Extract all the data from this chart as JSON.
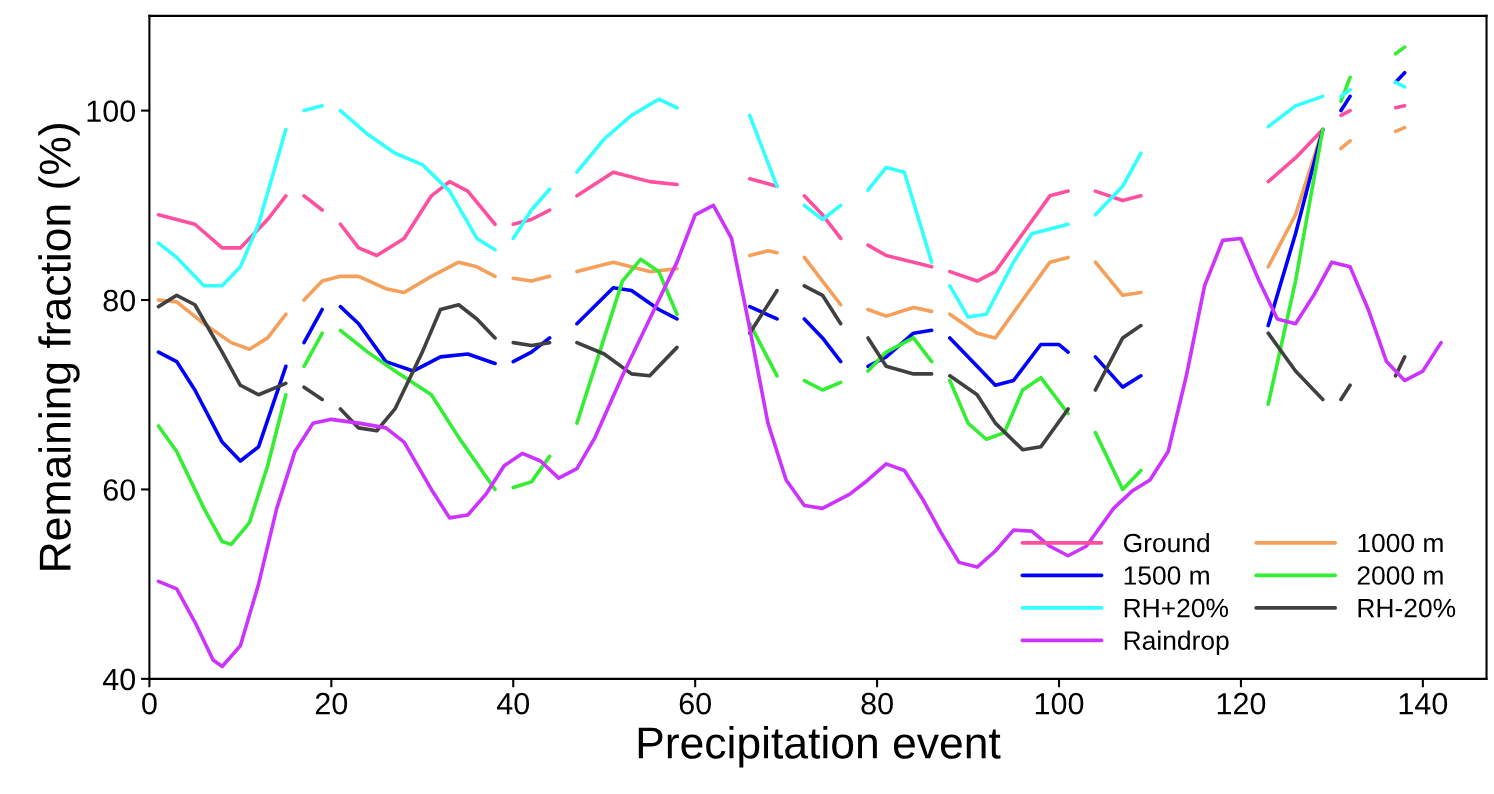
{
  "chart_data": {
    "type": "line",
    "xlabel": "Precipitation event",
    "ylabel": "Remaining fraction (%)",
    "xlim": [
      0,
      147
    ],
    "ylim": [
      40,
      110
    ],
    "xticks": [
      0,
      20,
      40,
      60,
      80,
      100,
      120,
      140
    ],
    "yticks": [
      40,
      60,
      80,
      100
    ],
    "grid": false,
    "legend": "bottom right",
    "marker": "none",
    "line_style": "solid",
    "series": [
      {
        "name": "Ground",
        "color": "#ff4fa0",
        "x": [
          1,
          5,
          8,
          10,
          13,
          15,
          16,
          17,
          19,
          20,
          21,
          23,
          25,
          28,
          31,
          33,
          35,
          38,
          39,
          40,
          42,
          44,
          45,
          47,
          51,
          55,
          58,
          60,
          66,
          69,
          70,
          72,
          74,
          76,
          77,
          79,
          81,
          84,
          86,
          87,
          88,
          91,
          93,
          96,
          99,
          101,
          102,
          104,
          107,
          109,
          110,
          123,
          126,
          129,
          130,
          131,
          132,
          135,
          137,
          138
        ],
        "values": [
          89,
          88,
          85.5,
          85.5,
          88.5,
          91,
          null,
          91,
          89.5,
          null,
          88,
          85.5,
          84.7,
          86.5,
          91,
          92.5,
          91.5,
          88,
          null,
          88,
          88.5,
          89.5,
          null,
          91,
          93.5,
          92.5,
          92.2,
          null,
          92.8,
          92,
          null,
          91,
          89,
          86.5,
          null,
          85.8,
          84.7,
          84,
          83.5,
          null,
          83,
          82,
          83,
          87,
          91,
          91.5,
          null,
          91.5,
          90.5,
          91,
          null,
          92.5,
          95,
          98,
          null,
          99.5,
          100,
          null,
          100.3,
          100.5
        ]
      },
      {
        "name": "1000 m",
        "color": "#f5a05a",
        "x": [
          1,
          3,
          6,
          9,
          11,
          13,
          15,
          16,
          17,
          19,
          21,
          23,
          26,
          28,
          31,
          34,
          36,
          38,
          39,
          40,
          42,
          44,
          45,
          47,
          51,
          55,
          58,
          60,
          66,
          68,
          69,
          70,
          72,
          74,
          76,
          77,
          79,
          81,
          84,
          86,
          87,
          88,
          91,
          93,
          96,
          99,
          101,
          102,
          104,
          107,
          109,
          110,
          123,
          126,
          129,
          130,
          131,
          132,
          135,
          137,
          138
        ],
        "values": [
          80,
          79.8,
          77.5,
          75.5,
          74.8,
          76,
          78.5,
          null,
          80,
          82,
          82.5,
          82.5,
          81.2,
          80.8,
          82.5,
          84,
          83.5,
          82.5,
          null,
          82.3,
          82,
          82.5,
          null,
          83,
          84,
          83,
          83.3,
          null,
          84.7,
          85.2,
          85,
          null,
          84.5,
          82,
          79.5,
          null,
          79,
          78.3,
          79.2,
          78.8,
          null,
          78.5,
          76.5,
          76,
          80,
          84,
          84.5,
          null,
          84,
          80.5,
          80.8,
          null,
          83.5,
          89,
          98,
          null,
          96,
          96.8,
          null,
          97.8,
          98.2
        ]
      },
      {
        "name": "1500 m",
        "color": "#0000ff",
        "x": [
          1,
          3,
          5,
          8,
          10,
          12,
          15,
          16,
          17,
          19,
          20,
          21,
          23,
          26,
          29,
          32,
          35,
          38,
          39,
          40,
          42,
          44,
          45,
          47,
          51,
          53,
          56,
          58,
          60,
          66,
          69,
          70,
          72,
          74,
          76,
          77,
          79,
          81,
          84,
          86,
          87,
          88,
          91,
          93,
          95,
          98,
          100,
          101,
          102,
          104,
          107,
          109,
          110,
          123,
          126,
          129,
          130,
          131,
          132,
          135,
          137,
          138
        ],
        "values": [
          74.5,
          73.5,
          70.5,
          65,
          63,
          64.5,
          73,
          null,
          75.5,
          79,
          null,
          79.3,
          77.5,
          73.5,
          72.5,
          74,
          74.3,
          73.3,
          null,
          73.5,
          74.5,
          76,
          null,
          77.5,
          81.3,
          81,
          79,
          78,
          null,
          79.3,
          78,
          null,
          78,
          76,
          73.5,
          null,
          73,
          74,
          76.5,
          76.8,
          null,
          76,
          73,
          71,
          71.5,
          75.3,
          75.3,
          74.5,
          null,
          74,
          70.8,
          72,
          null,
          77.3,
          87,
          98,
          null,
          100,
          101.5,
          null,
          103,
          104
        ]
      },
      {
        "name": "2000 m",
        "color": "#33ee33",
        "x": [
          1,
          3,
          6,
          8,
          9,
          11,
          13,
          15,
          16,
          17,
          19,
          20,
          21,
          24,
          27,
          31,
          34,
          38,
          39,
          40,
          42,
          44,
          45,
          47,
          50,
          52,
          54,
          56,
          58,
          60,
          66,
          69,
          70,
          72,
          74,
          76,
          77,
          79,
          81,
          84,
          86,
          87,
          88,
          90,
          92,
          94,
          96,
          98,
          101,
          102,
          104,
          107,
          109,
          110,
          123,
          126,
          129,
          130,
          131,
          132,
          135,
          137,
          138
        ],
        "values": [
          66.7,
          64,
          58,
          54.5,
          54.2,
          56.5,
          62.5,
          70,
          null,
          73,
          76.5,
          null,
          76.8,
          74.5,
          72.5,
          70,
          65.5,
          60,
          null,
          60.2,
          60.8,
          63.5,
          null,
          67,
          76,
          82,
          84.3,
          83,
          78.5,
          null,
          77.5,
          72,
          null,
          71.5,
          70.5,
          71.3,
          null,
          72.5,
          74.5,
          76,
          73.5,
          null,
          71.5,
          67,
          65.3,
          66,
          70.5,
          71.8,
          68,
          null,
          66,
          60,
          62,
          null,
          69,
          82,
          98,
          null,
          101,
          103.5,
          null,
          106,
          106.7
        ]
      },
      {
        "name": "RH+20%",
        "color": "#33ffff",
        "x": [
          1,
          3,
          6,
          8,
          10,
          12,
          15,
          16,
          17,
          19,
          20,
          21,
          24,
          27,
          30,
          33,
          36,
          38,
          39,
          40,
          42,
          44,
          45,
          47,
          50,
          53,
          56,
          58,
          60,
          66,
          69,
          70,
          72,
          74,
          76,
          77,
          79,
          81,
          83,
          86,
          87,
          88,
          90,
          92,
          95,
          97,
          101,
          102,
          104,
          107,
          109,
          110,
          123,
          126,
          129,
          130,
          131,
          132,
          135,
          137,
          138
        ],
        "values": [
          86,
          84.5,
          81.5,
          81.5,
          83.5,
          88,
          98,
          null,
          100,
          100.5,
          null,
          100,
          97.5,
          95.5,
          94.3,
          91.5,
          86.5,
          85.3,
          null,
          86.5,
          89.5,
          91.7,
          null,
          93.5,
          97,
          99.5,
          101.2,
          100.3,
          null,
          99.5,
          92,
          null,
          90,
          88.5,
          90,
          null,
          91.6,
          94,
          93.5,
          84,
          null,
          81.5,
          78.2,
          78.5,
          84,
          87,
          88,
          null,
          89,
          92,
          95.5,
          null,
          98.3,
          100.5,
          101.5,
          null,
          101.5,
          102.2,
          null,
          103,
          102.5
        ]
      },
      {
        "name": "RH-20%",
        "color": "#404040",
        "x": [
          1,
          3,
          5,
          8,
          10,
          12,
          15,
          16,
          17,
          19,
          20,
          21,
          23,
          25,
          27,
          30,
          32,
          34,
          36,
          38,
          39,
          40,
          42,
          44,
          45,
          47,
          50,
          53,
          55,
          58,
          60,
          66,
          69,
          70,
          72,
          74,
          76,
          77,
          79,
          81,
          84,
          86,
          87,
          88,
          91,
          93,
          96,
          98,
          101,
          102,
          104,
          107,
          109,
          110,
          123,
          126,
          129,
          130,
          131,
          132,
          135,
          137,
          138
        ],
        "values": [
          79.3,
          80.5,
          79.5,
          74.5,
          71,
          70,
          71.2,
          null,
          70.8,
          69.5,
          null,
          68.5,
          66.5,
          66.2,
          68.5,
          74.5,
          79,
          79.5,
          78,
          76,
          null,
          75.5,
          75.2,
          75.5,
          null,
          75.5,
          74.3,
          72.2,
          72,
          75,
          null,
          76.5,
          81,
          null,
          81.5,
          80.5,
          77.5,
          null,
          76,
          73,
          72.2,
          72.2,
          null,
          72,
          70,
          67,
          64.2,
          64.5,
          68.5,
          null,
          70.5,
          76,
          77.3,
          null,
          76.5,
          72.5,
          69.5,
          null,
          69.5,
          71,
          null,
          72,
          74
        ]
      },
      {
        "name": "Raindrop",
        "color": "#cc33ff",
        "x": [
          1,
          3,
          5,
          7,
          8,
          10,
          12,
          14,
          16,
          18,
          20,
          23,
          26,
          28,
          31,
          33,
          35,
          37,
          39,
          41,
          43,
          45,
          47,
          49,
          52,
          55,
          58,
          60,
          62,
          64,
          66,
          68,
          70,
          72,
          74,
          77,
          79,
          81,
          83,
          85,
          87,
          89,
          91,
          93,
          95,
          97,
          99,
          101,
          103,
          106,
          108,
          110,
          112,
          114,
          116,
          118,
          120,
          122,
          124,
          126,
          128,
          130,
          132,
          134,
          136,
          138,
          140,
          142
        ],
        "values": [
          50.3,
          49.5,
          46,
          42,
          41.3,
          43.5,
          50,
          58,
          64,
          67,
          67.4,
          67,
          66.5,
          65,
          60,
          57,
          57.3,
          59.5,
          62.5,
          63.8,
          63,
          61.2,
          62.2,
          65.5,
          72,
          78,
          84,
          89,
          90,
          86.5,
          77,
          67,
          61,
          58.3,
          58,
          59.5,
          61,
          62.7,
          62,
          59,
          55.5,
          52.3,
          51.8,
          53.5,
          55.7,
          55.6,
          54,
          53,
          54,
          58,
          59.8,
          61,
          64,
          72,
          81.5,
          86.3,
          86.5,
          82,
          78,
          77.5,
          80.5,
          84,
          83.5,
          79,
          73.5,
          71.5,
          72.5,
          75.5
        ]
      }
    ]
  }
}
